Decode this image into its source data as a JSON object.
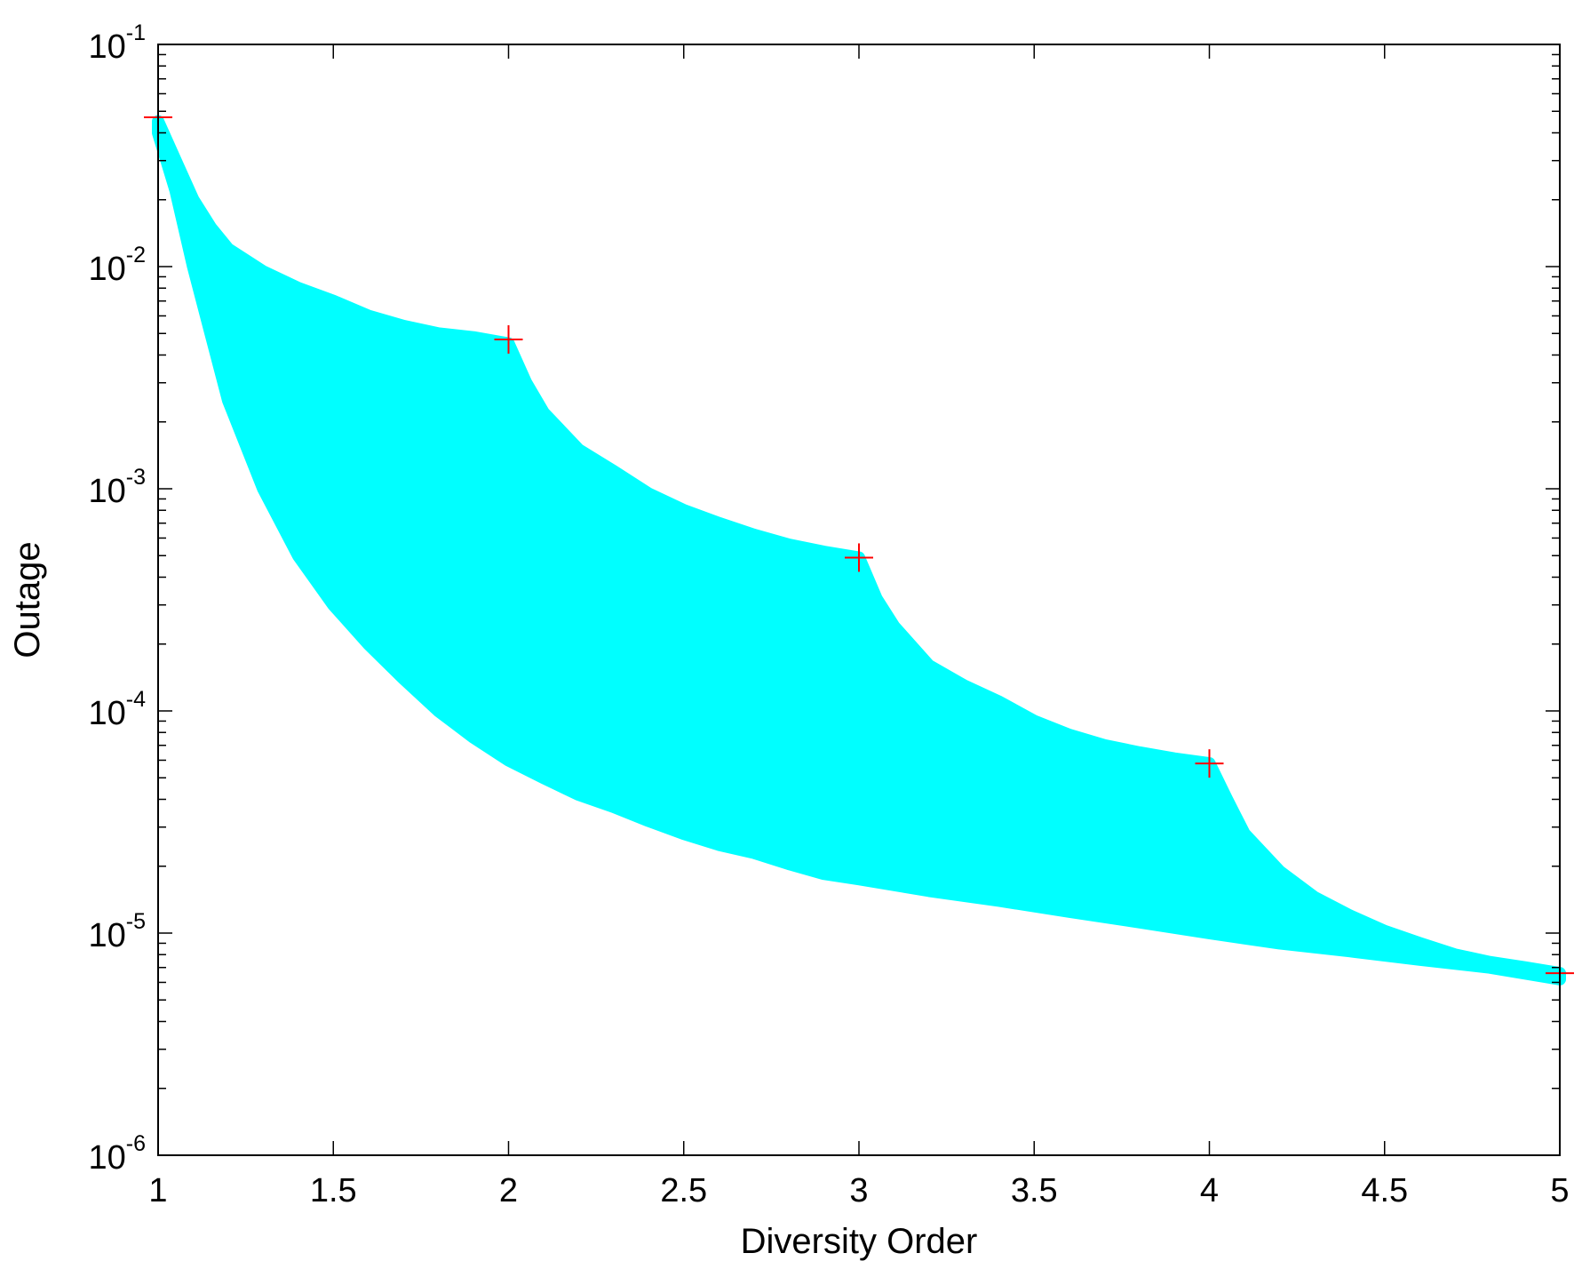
{
  "chart_data": {
    "type": "area",
    "xlabel": "Diversity Order",
    "ylabel": "Outage",
    "xlim": [
      1,
      5
    ],
    "ylim": [
      1e-06,
      0.1
    ],
    "yscale": "log",
    "grid": false,
    "x_ticks": [
      "1",
      "1.5",
      "2",
      "2.5",
      "3",
      "3.5",
      "4",
      "4.5",
      "5"
    ],
    "y_ticks": [
      {
        "base": "10",
        "exp": "-1"
      },
      {
        "base": "10",
        "exp": "-2"
      },
      {
        "base": "10",
        "exp": "-3"
      },
      {
        "base": "10",
        "exp": "-4"
      },
      {
        "base": "10",
        "exp": "-5"
      },
      {
        "base": "10",
        "exp": "-6"
      }
    ],
    "region_color": "#00ffff",
    "marker_color": "#ff0000",
    "region": {
      "upper": [
        [
          1.0,
          0.045
        ],
        [
          1.05,
          0.03
        ],
        [
          1.1,
          0.02
        ],
        [
          1.15,
          0.015
        ],
        [
          1.2,
          0.012
        ],
        [
          1.3,
          0.0095
        ],
        [
          1.4,
          0.008
        ],
        [
          1.5,
          0.007
        ],
        [
          1.6,
          0.006
        ],
        [
          1.7,
          0.0054
        ],
        [
          1.8,
          0.005
        ],
        [
          1.9,
          0.0048
        ],
        [
          2.0,
          0.0045
        ],
        [
          2.05,
          0.003
        ],
        [
          2.1,
          0.0022
        ],
        [
          2.2,
          0.0015
        ],
        [
          2.3,
          0.0012
        ],
        [
          2.4,
          0.00095
        ],
        [
          2.5,
          0.0008
        ],
        [
          2.6,
          0.0007
        ],
        [
          2.7,
          0.00062
        ],
        [
          2.8,
          0.00056
        ],
        [
          2.9,
          0.00052
        ],
        [
          3.0,
          0.00049
        ],
        [
          3.05,
          0.00032
        ],
        [
          3.1,
          0.00024
        ],
        [
          3.2,
          0.00016
        ],
        [
          3.3,
          0.00013
        ],
        [
          3.4,
          0.00011
        ],
        [
          3.5,
          9e-05
        ],
        [
          3.6,
          7.8e-05
        ],
        [
          3.7,
          7e-05
        ],
        [
          3.8,
          6.5e-05
        ],
        [
          3.9,
          6.1e-05
        ],
        [
          4.0,
          5.8e-05
        ],
        [
          4.05,
          4e-05
        ],
        [
          4.1,
          2.8e-05
        ],
        [
          4.2,
          1.9e-05
        ],
        [
          4.3,
          1.45e-05
        ],
        [
          4.4,
          1.2e-05
        ],
        [
          4.5,
          1.02e-05
        ],
        [
          4.6,
          9e-06
        ],
        [
          4.7,
          8e-06
        ],
        [
          4.8,
          7.4e-06
        ],
        [
          4.9,
          7e-06
        ],
        [
          5.0,
          6.6e-06
        ]
      ],
      "lower": [
        [
          1.0,
          0.04
        ],
        [
          1.05,
          0.022
        ],
        [
          1.1,
          0.01
        ],
        [
          1.15,
          0.005
        ],
        [
          1.2,
          0.0025
        ],
        [
          1.3,
          0.001
        ],
        [
          1.4,
          0.0005
        ],
        [
          1.5,
          0.0003
        ],
        [
          1.6,
          0.0002
        ],
        [
          1.7,
          0.00014
        ],
        [
          1.8,
          0.0001
        ],
        [
          1.9,
          7.6e-05
        ],
        [
          2.0,
          6e-05
        ],
        [
          2.1,
          5e-05
        ],
        [
          2.2,
          4.2e-05
        ],
        [
          2.3,
          3.7e-05
        ],
        [
          2.4,
          3.2e-05
        ],
        [
          2.5,
          2.8e-05
        ],
        [
          2.6,
          2.5e-05
        ],
        [
          2.7,
          2.3e-05
        ],
        [
          2.8,
          2.05e-05
        ],
        [
          2.9,
          1.85e-05
        ],
        [
          3.0,
          1.75e-05
        ],
        [
          3.2,
          1.55e-05
        ],
        [
          3.4,
          1.4e-05
        ],
        [
          3.6,
          1.25e-05
        ],
        [
          3.8,
          1.12e-05
        ],
        [
          4.0,
          1e-05
        ],
        [
          4.2,
          9e-06
        ],
        [
          4.4,
          8.3e-06
        ],
        [
          4.6,
          7.6e-06
        ],
        [
          4.8,
          7e-06
        ],
        [
          5.0,
          6.2e-06
        ]
      ]
    },
    "markers": [
      [
        1,
        0.047
      ],
      [
        2,
        0.0047
      ],
      [
        3,
        0.00049
      ],
      [
        4,
        5.8e-05
      ],
      [
        5,
        6.6e-06
      ]
    ]
  }
}
